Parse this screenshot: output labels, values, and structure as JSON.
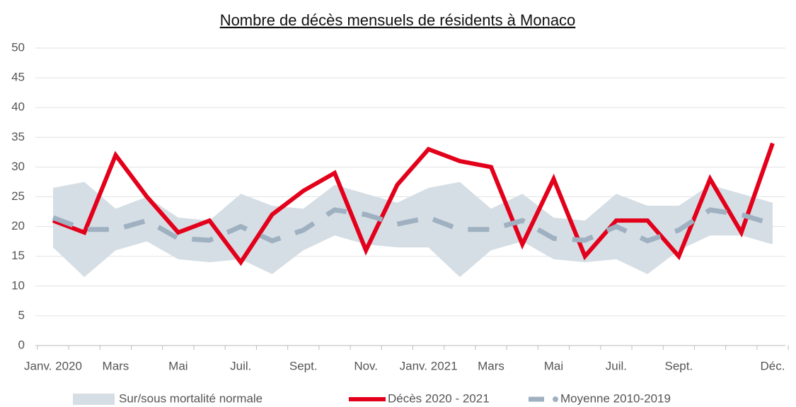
{
  "chart_data": {
    "type": "line",
    "title": "Nombre de décès mensuels de résidents à Monaco",
    "categories": [
      "Janv. 2020",
      null,
      "Mars",
      null,
      "Mai",
      null,
      "Juil.",
      null,
      "Sept.",
      null,
      "Nov.",
      null,
      "Janv. 2021",
      null,
      "Mars",
      null,
      "Mai",
      null,
      "Juil.",
      null,
      "Sept.",
      null,
      null,
      "Déc."
    ],
    "ylim": [
      0,
      50
    ],
    "yticks": [
      0,
      5,
      10,
      15,
      20,
      25,
      30,
      35,
      40,
      45,
      50
    ],
    "grid": true,
    "band": {
      "name": "Sur/sous mortalité normale",
      "color": "#d5dee5",
      "lower": [
        16.5,
        11.5,
        16,
        17.5,
        14.5,
        14,
        14.5,
        12,
        16,
        18.5,
        17,
        16.5,
        16.5,
        11.5,
        16,
        17.5,
        14.5,
        14,
        14.5,
        12,
        16,
        18.5,
        18.5,
        17
      ],
      "upper": [
        26.5,
        27.5,
        23,
        25,
        21.5,
        21,
        25.5,
        23.5,
        23,
        27,
        25.5,
        24,
        26.5,
        27.5,
        23,
        25.5,
        21.5,
        21,
        25.5,
        23.5,
        23.5,
        27,
        25.5,
        24
      ]
    },
    "series": [
      {
        "name": "Décès 2020 - 2021",
        "color": "#e3001b",
        "values": [
          21,
          19,
          32,
          25,
          19,
          21,
          14,
          22,
          26,
          29,
          16,
          27,
          33,
          31,
          30,
          17,
          28,
          15,
          21,
          21,
          15,
          28,
          19,
          34
        ]
      },
      {
        "name": "Moyenne 2010-2019",
        "color": "#9fb1c1",
        "dashed": true,
        "values": [
          21.5,
          19.5,
          19.5,
          21,
          18,
          17.7,
          20,
          17.6,
          19.4,
          22.8,
          22,
          20.4,
          21.5,
          19.5,
          19.5,
          21,
          18,
          17.7,
          20,
          17.6,
          19.4,
          22.8,
          22,
          20.4
        ]
      }
    ]
  }
}
